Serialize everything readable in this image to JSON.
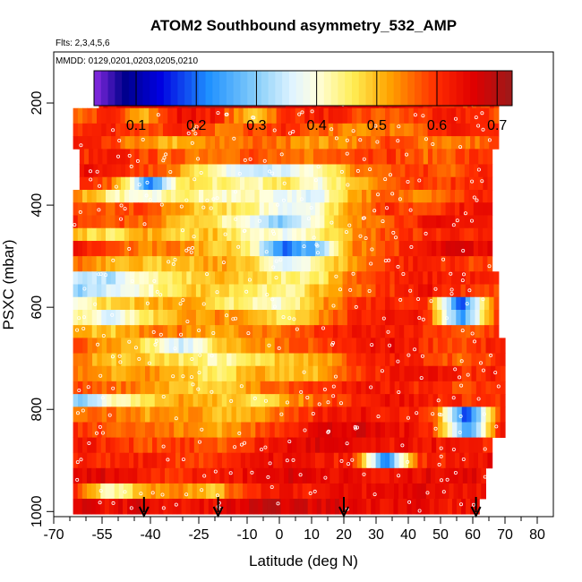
{
  "chart_data": {
    "type": "heatmap",
    "title": "ATOM2 Southbound asymmetry_532_AMP",
    "flights_note": "Flts: 2,3,4,5,6",
    "dates_note": "MMDD: 0129,0201,0203,0205,0210",
    "xlabel": "Latitude (deg N)",
    "ylabel": "PSXC (mbar)",
    "xlim": [
      -70,
      85
    ],
    "ylim": [
      1010,
      100
    ],
    "x_ticks": [
      -70,
      -55,
      -40,
      -25,
      -10,
      0,
      10,
      20,
      30,
      40,
      50,
      60,
      70,
      80
    ],
    "x_minor_ticks": [
      -65,
      -60,
      -50,
      -45,
      -35,
      -30,
      -20,
      -15,
      -5,
      5,
      15,
      25,
      35,
      45,
      55,
      65,
      75
    ],
    "y_ticks": [
      200,
      400,
      600,
      800,
      1000
    ],
    "colorbar": {
      "range": [
        0.03,
        0.725
      ],
      "ticks": [
        0.1,
        0.2,
        0.3,
        0.4,
        0.5,
        0.6,
        0.7
      ],
      "stops": [
        {
          "v": 0.03,
          "c": "#8a2be2"
        },
        {
          "v": 0.08,
          "c": "#00008b"
        },
        {
          "v": 0.14,
          "c": "#0000e0"
        },
        {
          "v": 0.22,
          "c": "#1e90ff"
        },
        {
          "v": 0.3,
          "c": "#87cefa"
        },
        {
          "v": 0.36,
          "c": "#e0f4ff"
        },
        {
          "v": 0.4,
          "c": "#ffffe0"
        },
        {
          "v": 0.46,
          "c": "#ffee55"
        },
        {
          "v": 0.52,
          "c": "#ffa500"
        },
        {
          "v": 0.6,
          "c": "#ff2a00"
        },
        {
          "v": 0.66,
          "c": "#e00000"
        },
        {
          "v": 0.725,
          "c": "#9b1a1a"
        }
      ]
    },
    "profile_markers_lat": [
      -42,
      -19,
      20,
      61
    ],
    "levels": [
      {
        "p0": 180,
        "p1": 210,
        "lat0": -56,
        "lat1": 68,
        "v": [
          0.64,
          0.66,
          0.68,
          0.7,
          0.7,
          0.69,
          0.66,
          0.66,
          0.65,
          0.62,
          0.6,
          0.6
        ]
      },
      {
        "p0": 210,
        "p1": 240,
        "lat0": -64,
        "lat1": 68,
        "v": [
          0.56,
          0.6,
          0.52,
          0.64,
          0.62,
          0.48,
          0.6,
          0.62,
          0.58,
          0.56,
          0.6,
          0.62,
          0.58
        ]
      },
      {
        "p0": 240,
        "p1": 265,
        "lat0": -64,
        "lat1": 68,
        "v": [
          0.6,
          0.62,
          0.58,
          0.6,
          0.56,
          0.58,
          0.6,
          0.56,
          0.54,
          0.55,
          0.58,
          0.62,
          0.6
        ]
      },
      {
        "p0": 265,
        "p1": 290,
        "lat0": -64,
        "lat1": 68,
        "v": [
          0.62,
          0.58,
          0.52,
          0.5,
          0.54,
          0.56,
          0.55,
          0.52,
          0.55,
          0.58,
          0.56,
          0.54,
          0.58
        ]
      },
      {
        "p0": 290,
        "p1": 320,
        "lat0": -62,
        "lat1": 66,
        "v": [
          0.6,
          0.62,
          0.58,
          0.56,
          0.56,
          0.58,
          0.54,
          0.56,
          0.6,
          0.6,
          0.56,
          0.58,
          0.6
        ]
      },
      {
        "p0": 320,
        "p1": 345,
        "lat0": -62,
        "lat1": 66,
        "v": [
          0.64,
          0.6,
          0.58,
          0.52,
          0.4,
          0.34,
          0.36,
          0.42,
          0.54,
          0.58,
          0.6,
          0.56,
          0.62
        ]
      },
      {
        "p0": 345,
        "p1": 370,
        "lat0": -62,
        "lat1": 66,
        "v": [
          0.6,
          0.55,
          0.2,
          0.48,
          0.44,
          0.42,
          0.46,
          0.4,
          0.5,
          0.56,
          0.58,
          0.6,
          0.62
        ]
      },
      {
        "p0": 370,
        "p1": 395,
        "lat0": -64,
        "lat1": 66,
        "v": [
          0.54,
          0.44,
          0.38,
          0.46,
          0.4,
          0.42,
          0.38,
          0.36,
          0.52,
          0.56,
          0.55,
          0.58,
          0.62
        ]
      },
      {
        "p0": 395,
        "p1": 420,
        "lat0": -64,
        "lat1": 66,
        "v": [
          0.58,
          0.56,
          0.58,
          0.52,
          0.48,
          0.44,
          0.38,
          0.4,
          0.54,
          0.6,
          0.58,
          0.62,
          0.64
        ]
      },
      {
        "p0": 420,
        "p1": 445,
        "lat0": -64,
        "lat1": 66,
        "v": [
          0.6,
          0.58,
          0.56,
          0.5,
          0.46,
          0.38,
          0.3,
          0.42,
          0.52,
          0.58,
          0.62,
          0.64,
          0.62
        ]
      },
      {
        "p0": 445,
        "p1": 470,
        "lat0": -64,
        "lat1": 66,
        "v": [
          0.5,
          0.46,
          0.52,
          0.48,
          0.5,
          0.42,
          0.38,
          0.44,
          0.52,
          0.58,
          0.6,
          0.62,
          0.6
        ]
      },
      {
        "p0": 470,
        "p1": 500,
        "lat0": -64,
        "lat1": 66,
        "v": [
          0.62,
          0.58,
          0.54,
          0.55,
          0.5,
          0.46,
          0.2,
          0.28,
          0.54,
          0.58,
          0.62,
          0.66,
          0.64
        ]
      },
      {
        "p0": 500,
        "p1": 530,
        "lat0": -64,
        "lat1": 66,
        "v": [
          0.56,
          0.52,
          0.5,
          0.48,
          0.52,
          0.5,
          0.34,
          0.44,
          0.52,
          0.6,
          0.62,
          0.6,
          0.58
        ]
      },
      {
        "p0": 530,
        "p1": 555,
        "lat0": -64,
        "lat1": 68,
        "v": [
          0.36,
          0.32,
          0.42,
          0.46,
          0.5,
          0.48,
          0.44,
          0.46,
          0.58,
          0.6,
          0.62,
          0.62,
          0.6
        ]
      },
      {
        "p0": 555,
        "p1": 580,
        "lat0": -64,
        "lat1": 68,
        "v": [
          0.3,
          0.36,
          0.4,
          0.48,
          0.5,
          0.46,
          0.42,
          0.5,
          0.56,
          0.6,
          0.64,
          0.6,
          0.58
        ]
      },
      {
        "p0": 580,
        "p1": 605,
        "lat0": -64,
        "lat1": 68,
        "v": [
          0.4,
          0.48,
          0.5,
          0.52,
          0.48,
          0.42,
          0.4,
          0.52,
          0.6,
          0.62,
          0.6,
          0.18,
          0.6
        ]
      },
      {
        "p0": 605,
        "p1": 635,
        "lat0": -64,
        "lat1": 68,
        "v": [
          0.44,
          0.36,
          0.46,
          0.52,
          0.54,
          0.5,
          0.46,
          0.54,
          0.6,
          0.64,
          0.62,
          0.22,
          0.58
        ]
      },
      {
        "p0": 635,
        "p1": 660,
        "lat0": -64,
        "lat1": 68,
        "v": [
          0.52,
          0.48,
          0.54,
          0.55,
          0.52,
          0.54,
          0.56,
          0.6,
          0.62,
          0.62,
          0.6,
          0.56,
          0.6
        ]
      },
      {
        "p0": 660,
        "p1": 690,
        "lat0": -64,
        "lat1": 70,
        "v": [
          0.58,
          0.52,
          0.46,
          0.34,
          0.48,
          0.52,
          0.56,
          0.58,
          0.62,
          0.64,
          0.6,
          0.58,
          0.62
        ]
      },
      {
        "p0": 690,
        "p1": 715,
        "lat0": -64,
        "lat1": 70,
        "v": [
          0.54,
          0.5,
          0.48,
          0.46,
          0.42,
          0.46,
          0.5,
          0.52,
          0.6,
          0.62,
          0.6,
          0.56,
          0.6
        ]
      },
      {
        "p0": 715,
        "p1": 745,
        "lat0": -64,
        "lat1": 70,
        "v": [
          0.56,
          0.52,
          0.54,
          0.5,
          0.44,
          0.52,
          0.48,
          0.52,
          0.6,
          0.62,
          0.64,
          0.6,
          0.62
        ]
      },
      {
        "p0": 745,
        "p1": 770,
        "lat0": -64,
        "lat1": 70,
        "v": [
          0.58,
          0.56,
          0.54,
          0.5,
          0.46,
          0.54,
          0.58,
          0.6,
          0.62,
          0.62,
          0.6,
          0.58,
          0.62
        ]
      },
      {
        "p0": 770,
        "p1": 795,
        "lat0": -64,
        "lat1": 70,
        "v": [
          0.3,
          0.4,
          0.48,
          0.52,
          0.5,
          0.46,
          0.52,
          0.58,
          0.62,
          0.64,
          0.62,
          0.6,
          0.6
        ]
      },
      {
        "p0": 795,
        "p1": 825,
        "lat0": -64,
        "lat1": 70,
        "v": [
          0.54,
          0.56,
          0.52,
          0.54,
          0.5,
          0.52,
          0.56,
          0.62,
          0.64,
          0.62,
          0.6,
          0.16,
          0.62
        ]
      },
      {
        "p0": 825,
        "p1": 855,
        "lat0": -64,
        "lat1": 70,
        "v": [
          0.6,
          0.58,
          0.56,
          0.54,
          0.52,
          0.56,
          0.62,
          0.66,
          0.66,
          0.64,
          0.62,
          0.22,
          0.64
        ]
      },
      {
        "p0": 855,
        "p1": 885,
        "lat0": -64,
        "lat1": 66,
        "v": [
          0.64,
          0.6,
          0.58,
          0.6,
          0.56,
          0.6,
          0.64,
          0.66,
          0.64,
          0.62,
          0.64,
          0.62,
          0.6
        ]
      },
      {
        "p0": 885,
        "p1": 915,
        "lat0": -64,
        "lat1": 66,
        "v": [
          0.62,
          0.6,
          0.62,
          0.58,
          0.6,
          0.62,
          0.64,
          0.62,
          0.62,
          0.2,
          0.6,
          0.62,
          0.64
        ]
      },
      {
        "p0": 915,
        "p1": 945,
        "lat0": -64,
        "lat1": 64,
        "v": [
          0.64,
          0.66,
          0.62,
          0.6,
          0.62,
          0.64,
          0.66,
          0.66,
          0.64,
          0.62,
          0.64,
          0.66,
          0.64
        ]
      },
      {
        "p0": 945,
        "p1": 975,
        "lat0": -64,
        "lat1": 64,
        "v": [
          0.62,
          0.4,
          0.52,
          0.56,
          0.48,
          0.6,
          0.64,
          0.62,
          0.64,
          0.64,
          0.66,
          0.64,
          0.62
        ]
      },
      {
        "p0": 975,
        "p1": 1005,
        "lat0": -64,
        "lat1": 62,
        "v": [
          0.66,
          0.64,
          0.66,
          0.62,
          0.64,
          0.66,
          0.68,
          0.66,
          0.66,
          0.64,
          0.66,
          0.62,
          0.64
        ]
      }
    ]
  }
}
